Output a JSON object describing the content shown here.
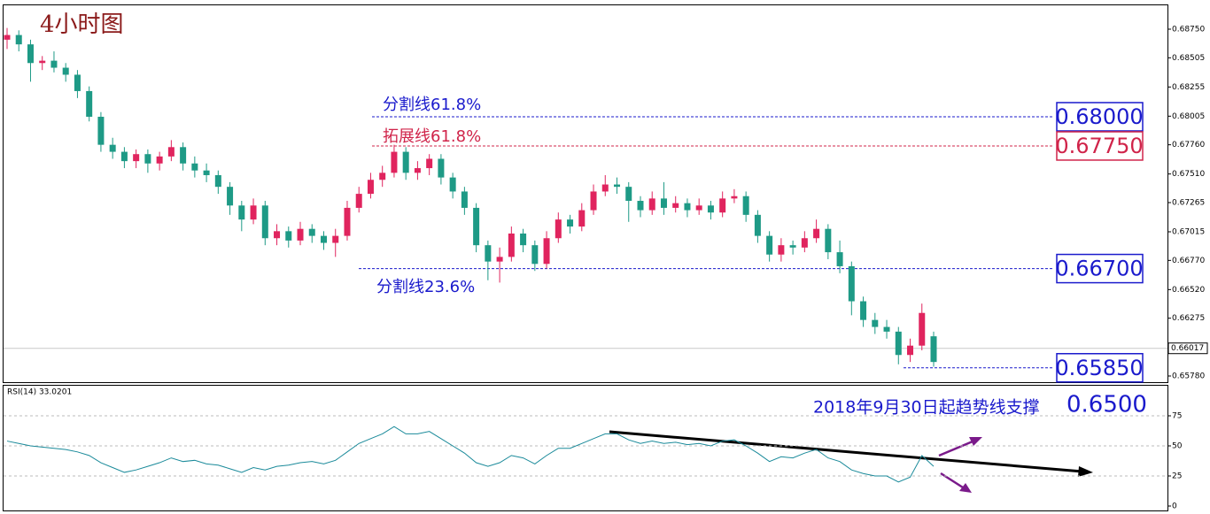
{
  "chart_data": {
    "type": "candlestick",
    "title": "4小时图",
    "up_color": "#e0245e",
    "down_color": "#1e9a86",
    "ylim": [
      0.65727,
      0.68962
    ],
    "yticks": [
      {
        "value": 0.6875,
        "label": "0.68750"
      },
      {
        "value": 0.68505,
        "label": "0.68505"
      },
      {
        "value": 0.68255,
        "label": "0.68255"
      },
      {
        "value": 0.68005,
        "label": "0.68005"
      },
      {
        "value": 0.6776,
        "label": "0.67760"
      },
      {
        "value": 0.6751,
        "label": "0.67510"
      },
      {
        "value": 0.67265,
        "label": "0.67265"
      },
      {
        "value": 0.67015,
        "label": "0.67015"
      },
      {
        "value": 0.6677,
        "label": "0.66770"
      },
      {
        "value": 0.6652,
        "label": "0.66520"
      },
      {
        "value": 0.66275,
        "label": "0.66275"
      },
      {
        "value": 0.6578,
        "label": "0.65780"
      }
    ],
    "current_price": {
      "value": 0.66017,
      "label": "0.66017"
    },
    "candles": [
      [
        0.6866,
        0.6876,
        0.6858,
        0.687
      ],
      [
        0.687,
        0.6874,
        0.6856,
        0.6862
      ],
      [
        0.6862,
        0.6866,
        0.683,
        0.6846
      ],
      [
        0.6846,
        0.6852,
        0.684,
        0.6848
      ],
      [
        0.6848,
        0.6856,
        0.6838,
        0.6842
      ],
      [
        0.6842,
        0.6846,
        0.683,
        0.6836
      ],
      [
        0.6836,
        0.684,
        0.6816,
        0.6822
      ],
      [
        0.6822,
        0.6826,
        0.6796,
        0.68
      ],
      [
        0.68,
        0.6804,
        0.677,
        0.6776
      ],
      [
        0.6776,
        0.6782,
        0.6764,
        0.677
      ],
      [
        0.677,
        0.6774,
        0.6756,
        0.6762
      ],
      [
        0.6762,
        0.6772,
        0.6756,
        0.6768
      ],
      [
        0.6768,
        0.6772,
        0.6752,
        0.676
      ],
      [
        0.676,
        0.677,
        0.6754,
        0.6766
      ],
      [
        0.6766,
        0.678,
        0.6762,
        0.6774
      ],
      [
        0.6774,
        0.6778,
        0.6754,
        0.676
      ],
      [
        0.676,
        0.6766,
        0.6748,
        0.6754
      ],
      [
        0.6754,
        0.676,
        0.6744,
        0.675
      ],
      [
        0.675,
        0.6754,
        0.6734,
        0.674
      ],
      [
        0.674,
        0.6744,
        0.6716,
        0.6724
      ],
      [
        0.6724,
        0.6728,
        0.6702,
        0.6712
      ],
      [
        0.6712,
        0.673,
        0.6708,
        0.6724
      ],
      [
        0.6724,
        0.6728,
        0.669,
        0.6696
      ],
      [
        0.6696,
        0.6708,
        0.669,
        0.6702
      ],
      [
        0.6702,
        0.6706,
        0.6688,
        0.6694
      ],
      [
        0.6694,
        0.671,
        0.669,
        0.6704
      ],
      [
        0.6704,
        0.6708,
        0.6692,
        0.6698
      ],
      [
        0.6698,
        0.6702,
        0.6686,
        0.6692
      ],
      [
        0.6692,
        0.6704,
        0.668,
        0.6698
      ],
      [
        0.6698,
        0.6728,
        0.6694,
        0.6722
      ],
      [
        0.6722,
        0.674,
        0.6718,
        0.6734
      ],
      [
        0.6734,
        0.6752,
        0.673,
        0.6746
      ],
      [
        0.6746,
        0.6758,
        0.674,
        0.6752
      ],
      [
        0.6752,
        0.6776,
        0.6748,
        0.677
      ],
      [
        0.677,
        0.6774,
        0.6746,
        0.6752
      ],
      [
        0.6752,
        0.6762,
        0.6746,
        0.6756
      ],
      [
        0.6756,
        0.6768,
        0.675,
        0.6764
      ],
      [
        0.6764,
        0.6768,
        0.6742,
        0.6748
      ],
      [
        0.6748,
        0.6752,
        0.673,
        0.6736
      ],
      [
        0.6736,
        0.674,
        0.6716,
        0.6722
      ],
      [
        0.6722,
        0.6726,
        0.6684,
        0.669
      ],
      [
        0.669,
        0.6694,
        0.666,
        0.6676
      ],
      [
        0.6676,
        0.6688,
        0.6658,
        0.668
      ],
      [
        0.668,
        0.6706,
        0.6676,
        0.67
      ],
      [
        0.67,
        0.6704,
        0.6684,
        0.669
      ],
      [
        0.669,
        0.6694,
        0.6668,
        0.6674
      ],
      [
        0.6674,
        0.6702,
        0.667,
        0.6696
      ],
      [
        0.6696,
        0.6718,
        0.6692,
        0.6712
      ],
      [
        0.6712,
        0.6716,
        0.67,
        0.6706
      ],
      [
        0.6706,
        0.6726,
        0.6702,
        0.672
      ],
      [
        0.672,
        0.6742,
        0.6716,
        0.6736
      ],
      [
        0.6736,
        0.675,
        0.6732,
        0.6742
      ],
      [
        0.6742,
        0.6748,
        0.6734,
        0.674
      ],
      [
        0.674,
        0.6744,
        0.671,
        0.6728
      ],
      [
        0.6728,
        0.6732,
        0.6714,
        0.672
      ],
      [
        0.672,
        0.6736,
        0.6716,
        0.673
      ],
      [
        0.673,
        0.6744,
        0.6716,
        0.6722
      ],
      [
        0.6722,
        0.6732,
        0.6718,
        0.6726
      ],
      [
        0.6726,
        0.673,
        0.6714,
        0.672
      ],
      [
        0.672,
        0.673,
        0.6716,
        0.6724
      ],
      [
        0.6724,
        0.6728,
        0.6712,
        0.6718
      ],
      [
        0.6718,
        0.6736,
        0.6714,
        0.673
      ],
      [
        0.673,
        0.6738,
        0.6726,
        0.6732
      ],
      [
        0.6732,
        0.6736,
        0.671,
        0.6716
      ],
      [
        0.6716,
        0.672,
        0.6692,
        0.6698
      ],
      [
        0.6698,
        0.6702,
        0.6676,
        0.6682
      ],
      [
        0.6682,
        0.6696,
        0.6676,
        0.669
      ],
      [
        0.669,
        0.6694,
        0.6682,
        0.6688
      ],
      [
        0.6688,
        0.6702,
        0.6684,
        0.6696
      ],
      [
        0.6696,
        0.6712,
        0.6692,
        0.6704
      ],
      [
        0.6704,
        0.6708,
        0.6678,
        0.6684
      ],
      [
        0.6684,
        0.6694,
        0.6666,
        0.6672
      ],
      [
        0.6672,
        0.6676,
        0.663,
        0.6642
      ],
      [
        0.6642,
        0.6646,
        0.662,
        0.6626
      ],
      [
        0.6626,
        0.6632,
        0.6614,
        0.662
      ],
      [
        0.662,
        0.6626,
        0.661,
        0.6616
      ],
      [
        0.6616,
        0.662,
        0.6588,
        0.6596
      ],
      [
        0.6596,
        0.661,
        0.659,
        0.6604
      ],
      [
        0.6604,
        0.664,
        0.66,
        0.6632
      ],
      [
        0.6612,
        0.6616,
        0.6586,
        0.659
      ]
    ],
    "levels": [
      {
        "label": "分割线61.8%",
        "value": 0.68,
        "value_label": "0.68000",
        "color": "#1a1acc"
      },
      {
        "label": "拓展线61.8%",
        "value": 0.6775,
        "value_label": "0.67750",
        "color": "#d0244a"
      },
      {
        "label": "分割线23.6%",
        "value": 0.667,
        "value_label": "0.66700",
        "color": "#1a1acc"
      },
      {
        "value": 0.6585,
        "value_label": "0.65850",
        "color": "#1a1acc"
      }
    ],
    "annotation": {
      "text": "2018年9月30日起趋势线支撑",
      "value": "0.6500"
    },
    "rsi": {
      "label": "RSI(14) 33.0201",
      "color": "#1a8a9a",
      "ylim": [
        0,
        100
      ],
      "yticks": [
        0,
        25,
        50,
        75
      ],
      "values": [
        54,
        52,
        50,
        49,
        48,
        47,
        45,
        42,
        36,
        32,
        28,
        30,
        33,
        36,
        40,
        37,
        38,
        35,
        34,
        31,
        28,
        32,
        30,
        33,
        34,
        36,
        37,
        35,
        38,
        45,
        52,
        56,
        60,
        66,
        60,
        60,
        62,
        56,
        50,
        44,
        36,
        33,
        36,
        42,
        40,
        35,
        42,
        48,
        48,
        52,
        56,
        60,
        60,
        55,
        52,
        54,
        52,
        53,
        51,
        52,
        50,
        54,
        55,
        50,
        44,
        37,
        41,
        40,
        44,
        47,
        40,
        37,
        30,
        27,
        25,
        25,
        20,
        24,
        42,
        33.0201
      ]
    }
  }
}
